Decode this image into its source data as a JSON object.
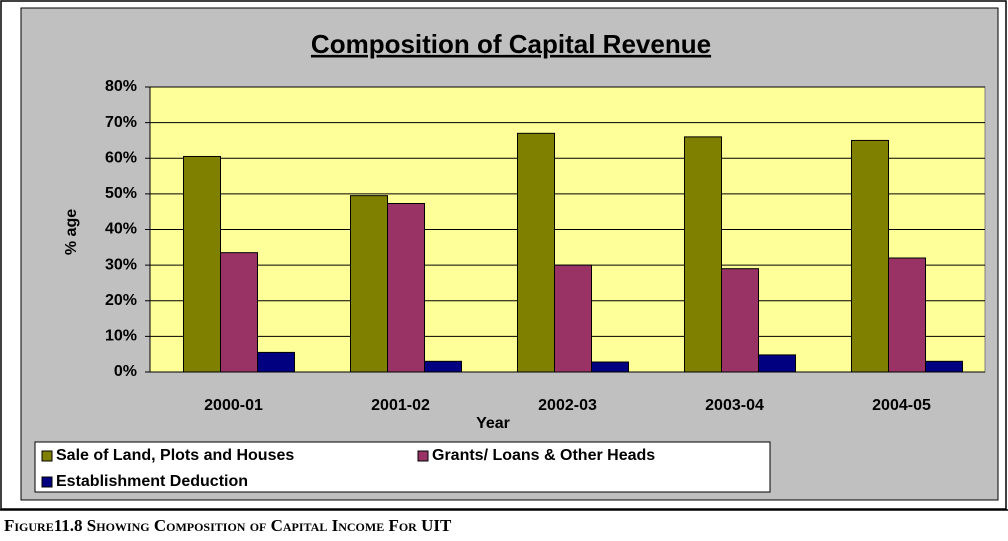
{
  "chart_data": {
    "type": "bar",
    "title": "Composition of Capital Revenue",
    "x_label": "Year",
    "y_label": "% age",
    "categories": [
      "2000-01",
      "2001-02",
      "2002-03",
      "2003-04",
      "2004-05"
    ],
    "series": [
      {
        "name": "Sale of Land, Plots and Houses",
        "color": "#808000",
        "values": [
          60.5,
          49.5,
          67,
          66,
          65
        ]
      },
      {
        "name": "Grants/ Loans & Other Heads",
        "color": "#993366",
        "values": [
          33.5,
          47.3,
          30,
          29,
          32
        ]
      },
      {
        "name": "Establishment Deduction",
        "color": "#000080",
        "values": [
          5.5,
          3,
          2.8,
          4.8,
          3
        ]
      }
    ],
    "ylim": [
      0,
      80
    ],
    "yticks": [
      {
        "value": 0,
        "label": "0%"
      },
      {
        "value": 10,
        "label": "10%"
      },
      {
        "value": 20,
        "label": "20%"
      },
      {
        "value": 30,
        "label": "30%"
      },
      {
        "value": 40,
        "label": "40%"
      },
      {
        "value": 50,
        "label": "50%"
      },
      {
        "value": 60,
        "label": "60%"
      },
      {
        "value": 70,
        "label": "70%"
      },
      {
        "value": 80,
        "label": "80%"
      }
    ],
    "grid": true,
    "caption": "Figure11.8 Showing Composition of Capital Income For UIT"
  }
}
